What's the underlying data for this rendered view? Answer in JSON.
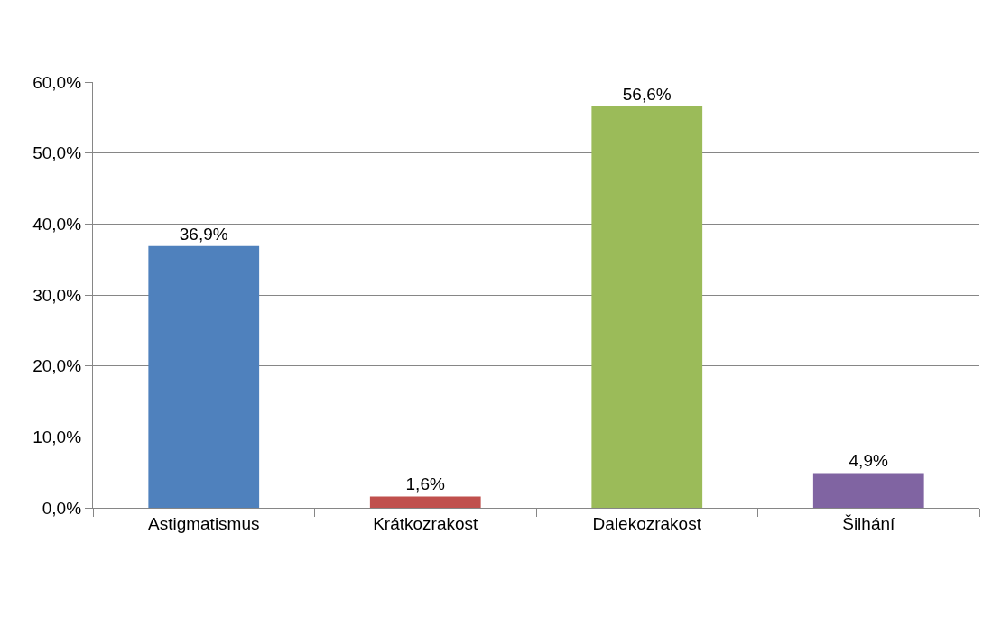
{
  "chart_data": {
    "type": "bar",
    "categories": [
      "Astigmatismus",
      "Krátkozrakost",
      "Dalekozrakost",
      "Šilhání"
    ],
    "values": [
      36.9,
      1.6,
      56.6,
      4.9
    ],
    "colors": [
      "#4f81bd",
      "#c0504d",
      "#9bbb59",
      "#8064a2"
    ],
    "value_labels": [
      "36,9%",
      "1,6%",
      "56,6%",
      "4,9%"
    ],
    "ylim": [
      0,
      60
    ],
    "yticks": [
      {
        "value": 0,
        "label": "0,0%"
      },
      {
        "value": 10,
        "label": "10,0%"
      },
      {
        "value": 20,
        "label": "20,0%"
      },
      {
        "value": 30,
        "label": "30,0%"
      },
      {
        "value": 40,
        "label": "40,0%"
      },
      {
        "value": 50,
        "label": "50,0%"
      },
      {
        "value": 60,
        "label": "60,0%"
      }
    ],
    "grid": "y"
  }
}
